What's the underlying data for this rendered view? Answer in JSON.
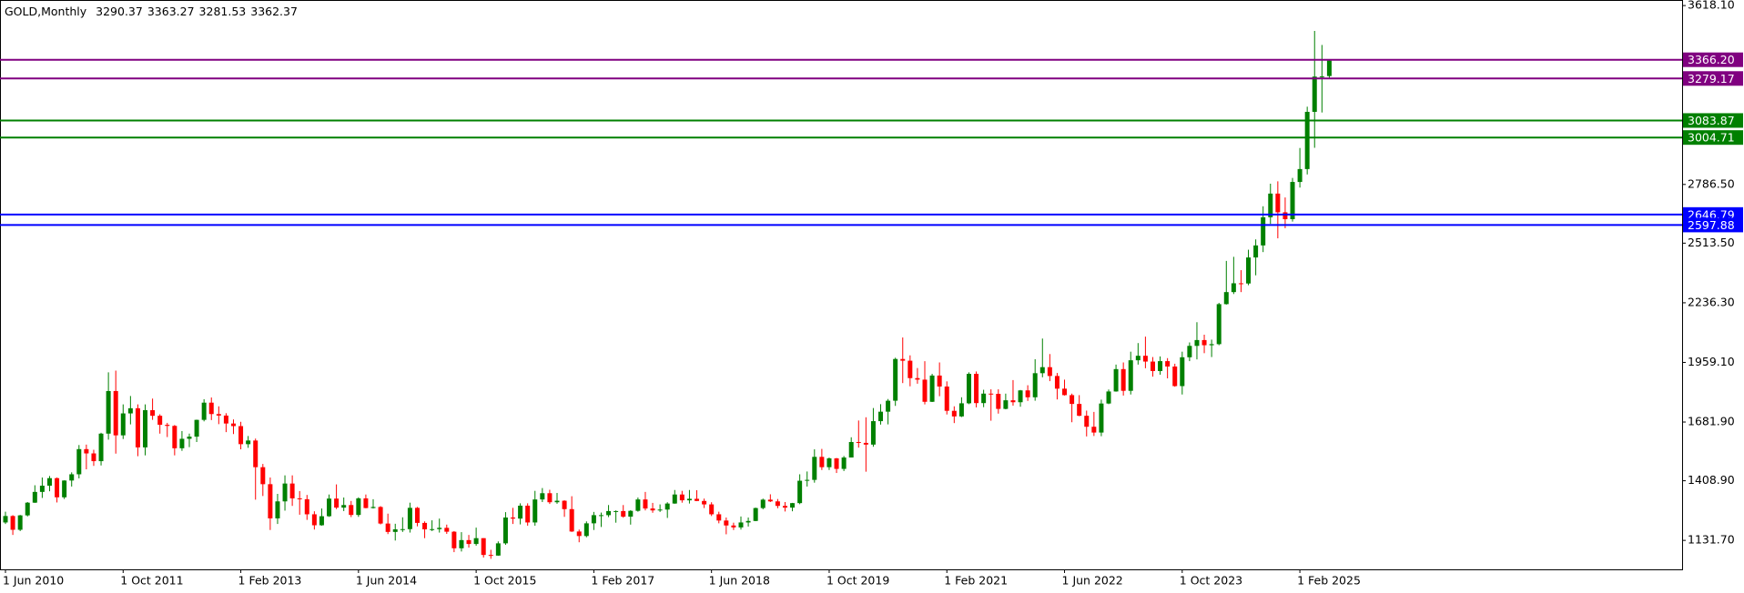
{
  "chart_data": {
    "type": "candlestick",
    "title": "GOLD,Monthly",
    "up_color": "#008000",
    "down_color": "#ff0000",
    "ylim": [
      997,
      3644
    ],
    "yticks": [
      {
        "value": 3618.1,
        "label": "3618.10"
      },
      {
        "value": 2786.5,
        "label": "2786.50"
      },
      {
        "value": 2513.5,
        "label": "2513.50"
      },
      {
        "value": 2236.3,
        "label": "2236.30"
      },
      {
        "value": 1959.1,
        "label": "1959.10"
      },
      {
        "value": 1681.9,
        "label": "1681.90"
      },
      {
        "value": 1408.9,
        "label": "1408.90"
      },
      {
        "value": 1131.7,
        "label": "1131.70"
      }
    ],
    "levels": [
      {
        "value": 3366.2,
        "label": "3366.20",
        "color": "#800080"
      },
      {
        "value": 3279.17,
        "label": "3279.17",
        "color": "#800080"
      },
      {
        "value": 3083.87,
        "label": "3083.87",
        "color": "#008000"
      },
      {
        "value": 3004.71,
        "label": "3004.71",
        "color": "#008000"
      },
      {
        "value": 2646.79,
        "label": "2646.79",
        "color": "#0000ff"
      },
      {
        "value": 2597.88,
        "label": "2597.88",
        "color": "#0000ff"
      }
    ],
    "categories": [
      "1 Jun 2010",
      null,
      null,
      null,
      null,
      null,
      null,
      null,
      null,
      null,
      null,
      null,
      null,
      null,
      null,
      null,
      "1 Oct 2011",
      null,
      null,
      null,
      null,
      null,
      null,
      null,
      null,
      null,
      null,
      null,
      null,
      null,
      null,
      null,
      "1 Feb 2013",
      null,
      null,
      null,
      null,
      null,
      null,
      null,
      null,
      null,
      null,
      null,
      null,
      null,
      null,
      null,
      "1 Jun 2014",
      null,
      null,
      null,
      null,
      null,
      null,
      null,
      null,
      null,
      null,
      null,
      null,
      null,
      null,
      null,
      "1 Oct 2015",
      null,
      null,
      null,
      null,
      null,
      null,
      null,
      null,
      null,
      null,
      null,
      null,
      null,
      null,
      null,
      "1 Feb 2017",
      null,
      null,
      null,
      null,
      null,
      null,
      null,
      null,
      null,
      null,
      null,
      null,
      null,
      null,
      null,
      "1 Jun 2018",
      null,
      null,
      null,
      null,
      null,
      null,
      null,
      null,
      null,
      null,
      null,
      null,
      null,
      null,
      null,
      "1 Oct 2019",
      null,
      null,
      null,
      null,
      null,
      null,
      null,
      null,
      null,
      null,
      null,
      null,
      null,
      null,
      null,
      "1 Feb 2021",
      null,
      null,
      null,
      null,
      null,
      null,
      null,
      null,
      null,
      null,
      null,
      null,
      null,
      null,
      null,
      "1 Jun 2022",
      null,
      null,
      null,
      null,
      null,
      null,
      null,
      null,
      null,
      null,
      null,
      null,
      null,
      null,
      null,
      "1 Oct 2023",
      null,
      null,
      null,
      null,
      null,
      null,
      null,
      null,
      null,
      null,
      null,
      null,
      null,
      null,
      null,
      "1 Feb 2025",
      null,
      null,
      null,
      null
    ],
    "ohlc": [
      [
        1215,
        1265,
        1208,
        1245
      ],
      [
        1245,
        1249,
        1157,
        1181
      ],
      [
        1181,
        1250,
        1175,
        1248
      ],
      [
        1248,
        1310,
        1243,
        1307
      ],
      [
        1307,
        1388,
        1306,
        1357
      ],
      [
        1357,
        1424,
        1329,
        1386
      ],
      [
        1386,
        1431,
        1360,
        1421
      ],
      [
        1421,
        1424,
        1308,
        1332
      ],
      [
        1332,
        1411,
        1324,
        1410
      ],
      [
        1410,
        1448,
        1382,
        1439
      ],
      [
        1439,
        1575,
        1420,
        1556
      ],
      [
        1556,
        1577,
        1462,
        1536
      ],
      [
        1536,
        1553,
        1478,
        1500
      ],
      [
        1500,
        1632,
        1480,
        1628
      ],
      [
        1628,
        1913,
        1600,
        1826
      ],
      [
        1826,
        1921,
        1535,
        1620
      ],
      [
        1620,
        1764,
        1603,
        1722
      ],
      [
        1722,
        1803,
        1671,
        1746
      ],
      [
        1746,
        1764,
        1523,
        1564
      ],
      [
        1564,
        1764,
        1527,
        1737
      ],
      [
        1737,
        1791,
        1692,
        1711
      ],
      [
        1711,
        1718,
        1628,
        1669
      ],
      [
        1669,
        1678,
        1612,
        1664
      ],
      [
        1664,
        1668,
        1527,
        1560
      ],
      [
        1560,
        1640,
        1548,
        1604
      ],
      [
        1604,
        1628,
        1565,
        1614
      ],
      [
        1614,
        1693,
        1589,
        1692
      ],
      [
        1692,
        1788,
        1685,
        1772
      ],
      [
        1772,
        1796,
        1691,
        1719
      ],
      [
        1719,
        1755,
        1672,
        1712
      ],
      [
        1712,
        1723,
        1635,
        1675
      ],
      [
        1675,
        1694,
        1626,
        1663
      ],
      [
        1663,
        1683,
        1555,
        1579
      ],
      [
        1579,
        1617,
        1562,
        1596
      ],
      [
        1596,
        1605,
        1321,
        1472
      ],
      [
        1472,
        1487,
        1338,
        1393
      ],
      [
        1393,
        1424,
        1180,
        1234
      ],
      [
        1234,
        1348,
        1208,
        1313
      ],
      [
        1313,
        1434,
        1270,
        1396
      ],
      [
        1396,
        1434,
        1292,
        1327
      ],
      [
        1327,
        1361,
        1251,
        1323
      ],
      [
        1323,
        1343,
        1227,
        1253
      ],
      [
        1253,
        1267,
        1182,
        1202
      ],
      [
        1202,
        1280,
        1200,
        1244
      ],
      [
        1244,
        1345,
        1241,
        1326
      ],
      [
        1326,
        1392,
        1277,
        1284
      ],
      [
        1284,
        1331,
        1268,
        1296
      ],
      [
        1296,
        1315,
        1240,
        1250
      ],
      [
        1250,
        1332,
        1241,
        1327
      ],
      [
        1327,
        1345,
        1281,
        1282
      ],
      [
        1282,
        1323,
        1280,
        1287
      ],
      [
        1287,
        1291,
        1206,
        1210
      ],
      [
        1210,
        1256,
        1161,
        1171
      ],
      [
        1171,
        1209,
        1131,
        1183
      ],
      [
        1183,
        1239,
        1171,
        1184
      ],
      [
        1184,
        1307,
        1168,
        1283
      ],
      [
        1283,
        1287,
        1197,
        1213
      ],
      [
        1213,
        1220,
        1142,
        1183
      ],
      [
        1183,
        1225,
        1175,
        1184
      ],
      [
        1184,
        1233,
        1168,
        1190
      ],
      [
        1190,
        1205,
        1162,
        1172
      ],
      [
        1172,
        1175,
        1077,
        1095
      ],
      [
        1095,
        1170,
        1080,
        1133
      ],
      [
        1133,
        1157,
        1098,
        1115
      ],
      [
        1115,
        1191,
        1107,
        1142
      ],
      [
        1142,
        1142,
        1052,
        1064
      ],
      [
        1064,
        1088,
        1046,
        1061
      ],
      [
        1061,
        1127,
        1060,
        1118
      ],
      [
        1118,
        1263,
        1111,
        1238
      ],
      [
        1238,
        1283,
        1208,
        1233
      ],
      [
        1233,
        1304,
        1206,
        1293
      ],
      [
        1293,
        1304,
        1200,
        1215
      ],
      [
        1215,
        1362,
        1200,
        1322
      ],
      [
        1322,
        1375,
        1310,
        1351
      ],
      [
        1351,
        1367,
        1301,
        1309
      ],
      [
        1309,
        1352,
        1302,
        1316
      ],
      [
        1316,
        1318,
        1241,
        1277
      ],
      [
        1277,
        1337,
        1171,
        1173
      ],
      [
        1173,
        1182,
        1123,
        1152
      ],
      [
        1152,
        1220,
        1146,
        1211
      ],
      [
        1211,
        1264,
        1180,
        1249
      ],
      [
        1249,
        1261,
        1194,
        1249
      ],
      [
        1249,
        1296,
        1240,
        1268
      ],
      [
        1268,
        1271,
        1214,
        1268
      ],
      [
        1268,
        1296,
        1237,
        1242
      ],
      [
        1242,
        1272,
        1205,
        1269
      ],
      [
        1269,
        1331,
        1265,
        1322
      ],
      [
        1322,
        1357,
        1271,
        1280
      ],
      [
        1280,
        1306,
        1260,
        1271
      ],
      [
        1271,
        1299,
        1264,
        1275
      ],
      [
        1275,
        1309,
        1236,
        1303
      ],
      [
        1303,
        1366,
        1302,
        1345
      ],
      [
        1345,
        1362,
        1307,
        1318
      ],
      [
        1318,
        1366,
        1303,
        1325
      ],
      [
        1325,
        1365,
        1314,
        1315
      ],
      [
        1315,
        1326,
        1282,
        1299
      ],
      [
        1299,
        1309,
        1245,
        1253
      ],
      [
        1253,
        1265,
        1211,
        1224
      ],
      [
        1224,
        1238,
        1160,
        1201
      ],
      [
        1201,
        1214,
        1180,
        1192
      ],
      [
        1192,
        1243,
        1182,
        1215
      ],
      [
        1215,
        1238,
        1196,
        1222
      ],
      [
        1222,
        1284,
        1221,
        1282
      ],
      [
        1282,
        1326,
        1276,
        1321
      ],
      [
        1321,
        1346,
        1310,
        1313
      ],
      [
        1313,
        1324,
        1281,
        1292
      ],
      [
        1292,
        1310,
        1266,
        1284
      ],
      [
        1284,
        1306,
        1267,
        1305
      ],
      [
        1305,
        1439,
        1300,
        1409
      ],
      [
        1409,
        1452,
        1382,
        1413
      ],
      [
        1413,
        1555,
        1400,
        1520
      ],
      [
        1520,
        1557,
        1459,
        1472
      ],
      [
        1472,
        1517,
        1459,
        1513
      ],
      [
        1513,
        1515,
        1445,
        1464
      ],
      [
        1464,
        1524,
        1454,
        1517
      ],
      [
        1517,
        1611,
        1517,
        1589
      ],
      [
        1589,
        1689,
        1563,
        1585
      ],
      [
        1585,
        1704,
        1451,
        1577
      ],
      [
        1577,
        1747,
        1567,
        1686
      ],
      [
        1686,
        1765,
        1670,
        1730
      ],
      [
        1730,
        1789,
        1671,
        1781
      ],
      [
        1781,
        1981,
        1757,
        1975
      ],
      [
        1975,
        2075,
        1863,
        1967
      ],
      [
        1967,
        1992,
        1848,
        1886
      ],
      [
        1886,
        1933,
        1860,
        1879
      ],
      [
        1879,
        1965,
        1764,
        1776
      ],
      [
        1776,
        1906,
        1775,
        1898
      ],
      [
        1898,
        1959,
        1802,
        1847
      ],
      [
        1847,
        1871,
        1717,
        1734
      ],
      [
        1734,
        1755,
        1677,
        1708
      ],
      [
        1708,
        1797,
        1705,
        1769
      ],
      [
        1769,
        1913,
        1765,
        1906
      ],
      [
        1906,
        1917,
        1750,
        1770
      ],
      [
        1770,
        1832,
        1751,
        1814
      ],
      [
        1814,
        1834,
        1688,
        1813
      ],
      [
        1813,
        1834,
        1721,
        1743
      ],
      [
        1743,
        1814,
        1741,
        1783
      ],
      [
        1783,
        1877,
        1758,
        1774
      ],
      [
        1774,
        1831,
        1753,
        1829
      ],
      [
        1829,
        1853,
        1780,
        1797
      ],
      [
        1797,
        1974,
        1781,
        1909
      ],
      [
        1909,
        2070,
        1890,
        1937
      ],
      [
        1937,
        1998,
        1872,
        1896
      ],
      [
        1896,
        1910,
        1787,
        1837
      ],
      [
        1837,
        1879,
        1805,
        1807
      ],
      [
        1807,
        1814,
        1681,
        1766
      ],
      [
        1766,
        1807,
        1709,
        1711
      ],
      [
        1711,
        1735,
        1615,
        1660
      ],
      [
        1660,
        1729,
        1617,
        1633
      ],
      [
        1633,
        1786,
        1616,
        1768
      ],
      [
        1768,
        1833,
        1765,
        1824
      ],
      [
        1824,
        1949,
        1823,
        1928
      ],
      [
        1928,
        1959,
        1805,
        1827
      ],
      [
        1827,
        2009,
        1810,
        1969
      ],
      [
        1969,
        2049,
        1949,
        1990
      ],
      [
        1990,
        2079,
        1932,
        1963
      ],
      [
        1963,
        1984,
        1893,
        1919
      ],
      [
        1919,
        1987,
        1902,
        1965
      ],
      [
        1965,
        1979,
        1885,
        1940
      ],
      [
        1940,
        1953,
        1846,
        1849
      ],
      [
        1849,
        2009,
        1810,
        1983
      ],
      [
        1983,
        2052,
        1965,
        2036
      ],
      [
        2036,
        2146,
        1973,
        2063
      ],
      [
        2063,
        2088,
        2002,
        2039
      ],
      [
        2039,
        2065,
        1984,
        2044
      ],
      [
        2044,
        2236,
        2039,
        2230
      ],
      [
        2230,
        2431,
        2228,
        2286
      ],
      [
        2286,
        2450,
        2277,
        2327
      ],
      [
        2327,
        2388,
        2286,
        2326
      ],
      [
        2326,
        2483,
        2318,
        2447
      ],
      [
        2447,
        2531,
        2364,
        2503
      ],
      [
        2503,
        2685,
        2472,
        2634
      ],
      [
        2634,
        2790,
        2603,
        2744
      ],
      [
        2744,
        2801,
        2536,
        2657
      ],
      [
        2657,
        2726,
        2583,
        2625
      ],
      [
        2625,
        2817,
        2614,
        2798
      ],
      [
        2798,
        2956,
        2772,
        2858
      ],
      [
        2858,
        3148,
        2833,
        3124
      ],
      [
        3124,
        3500,
        2957,
        3288
      ],
      [
        3288,
        3435,
        3121,
        3289
      ],
      [
        3290.37,
        3363.27,
        3281.53,
        3362.37
      ]
    ]
  }
}
